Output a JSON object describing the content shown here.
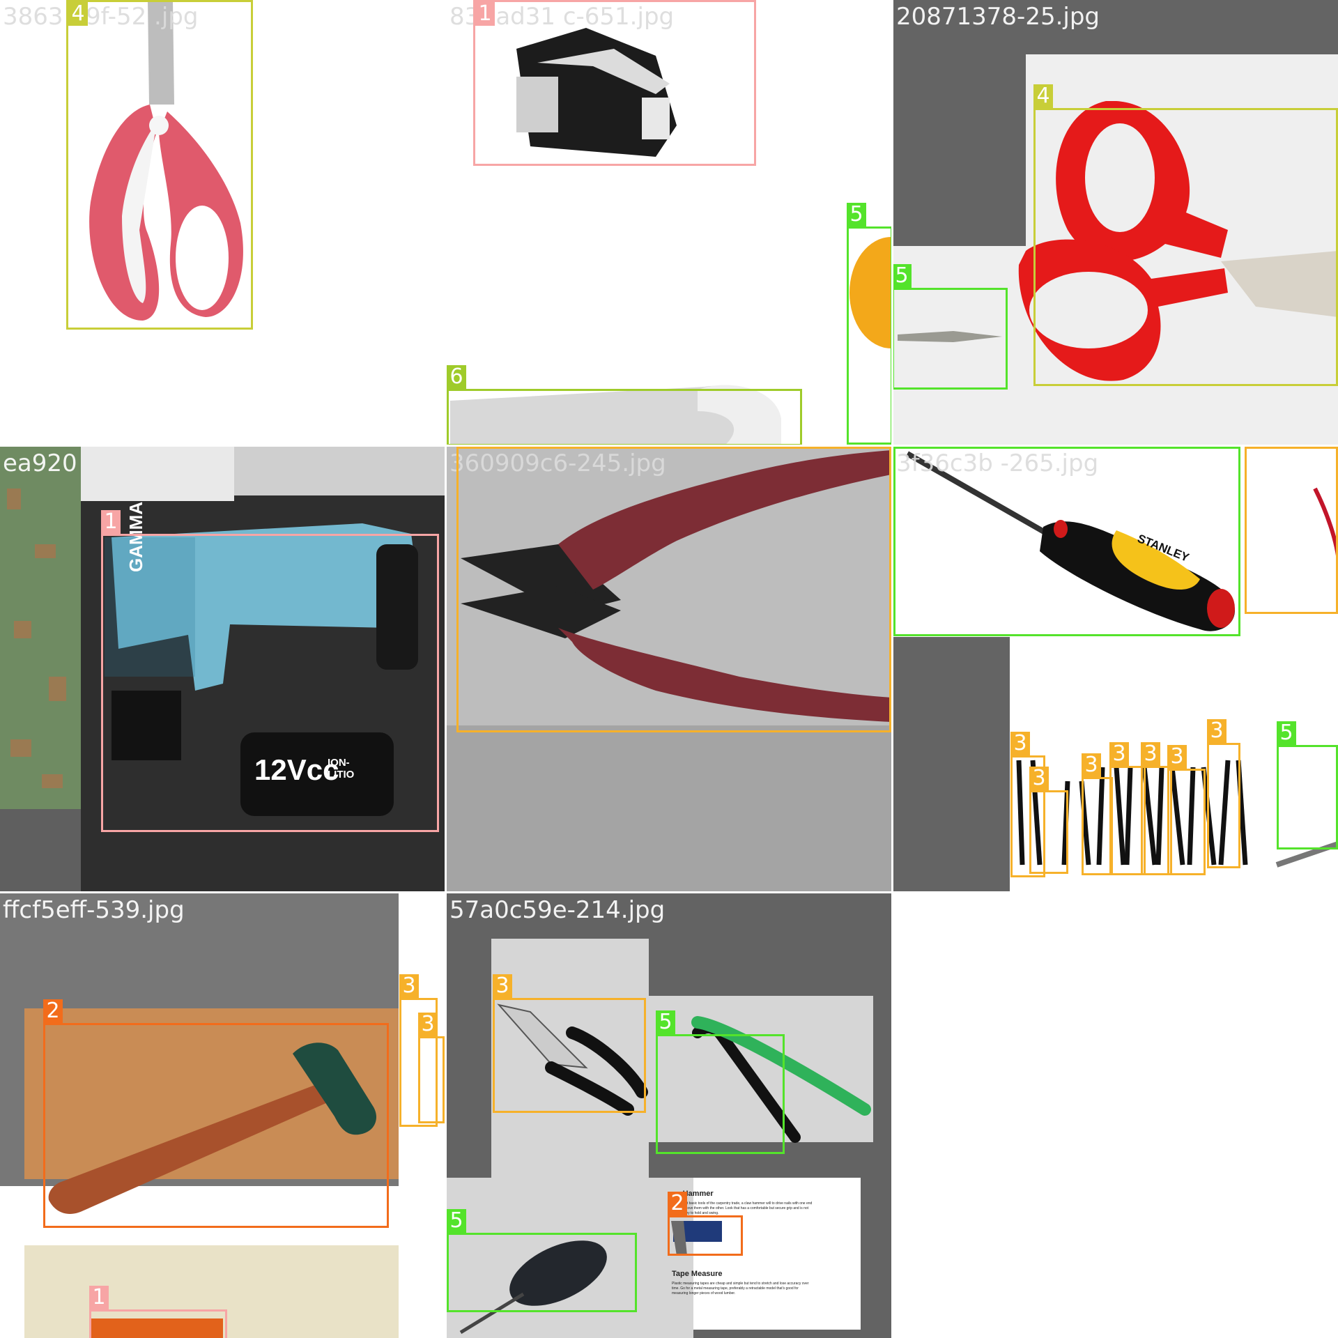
{
  "tiles": [
    {
      "filename": "3863 19f-52 .jpg"
    },
    {
      "filename": "83 -ad31 c-651.jpg"
    },
    {
      "filename": "20871378-25.jpg"
    },
    {
      "filename": "ea920"
    },
    {
      "filename": "360909c6-245.jpg"
    },
    {
      "filename": "3f36c3b -265.jpg"
    },
    {
      "filename": "ffcf5eff-539.jpg"
    },
    {
      "filename": "57a0c59e-214.jpg"
    }
  ],
  "class_labels": {
    "drill": "1",
    "hammer": "2",
    "pliers": "3",
    "scissors": "4",
    "screwdriver": "5",
    "wrench": "6"
  },
  "class_colors": {
    "1": "#f7a5a5",
    "2": "#f26c1b",
    "3": "#f6b12a",
    "4": "#c8ce38",
    "5": "#54e32b",
    "6": "#9fcb2a"
  },
  "drill_text": {
    "brand": "GAMMA",
    "battery": "12Vcc",
    "battery_sub": "ION- LITIO"
  },
  "screwdriver_brand": "STANLEY",
  "document": {
    "heading1": "w Hammer",
    "body1": "the most basic tools of the carpentry trade, a claw hammer will to drive nails with one end and remove them with the other. Look that has a comfortable but secure grip and is not too heavy to hold and swing.",
    "heading2": "Tape Measure",
    "body2": "Plastic measuring tapes are cheap and simple but tend to stretch and lose accuracy over time. Go for a metal measuring tape, preferably a retractable model that's good for measuring longer pieces of wood lumber."
  }
}
